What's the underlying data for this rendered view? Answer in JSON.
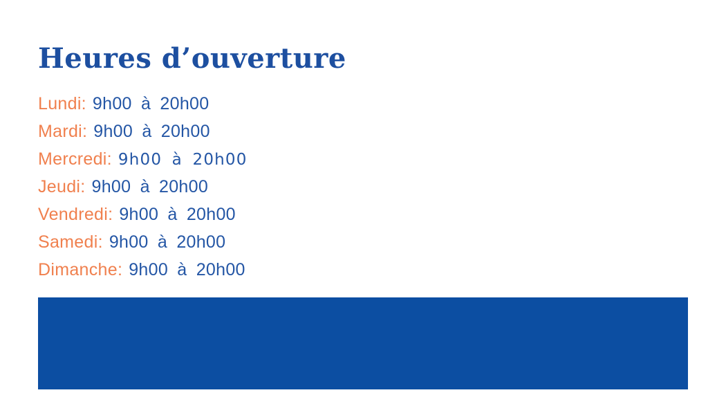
{
  "title": "Heures d’ouverture",
  "schedule": [
    {
      "day": "Lundi:",
      "time": "9h00 à 20h00"
    },
    {
      "day": "Mardi:",
      "time": "9h00 à 20h00"
    },
    {
      "day": "Mercredi:",
      "time": "9h00 à 20h00",
      "alt_style": true
    },
    {
      "day": "Jeudi:",
      "time": "9h00 à 20h00"
    },
    {
      "day": "Vendredi:",
      "time": "9h00 à 20h00"
    },
    {
      "day": "Samedi:",
      "time": "9h00 à 20h00"
    },
    {
      "day": "Dimanche:",
      "time": "9h00 à 20h00"
    }
  ],
  "colors": {
    "title": "#1D4FA0",
    "day": "#F0804E",
    "time": "#2456A5",
    "banner": "#0C4EA2"
  }
}
